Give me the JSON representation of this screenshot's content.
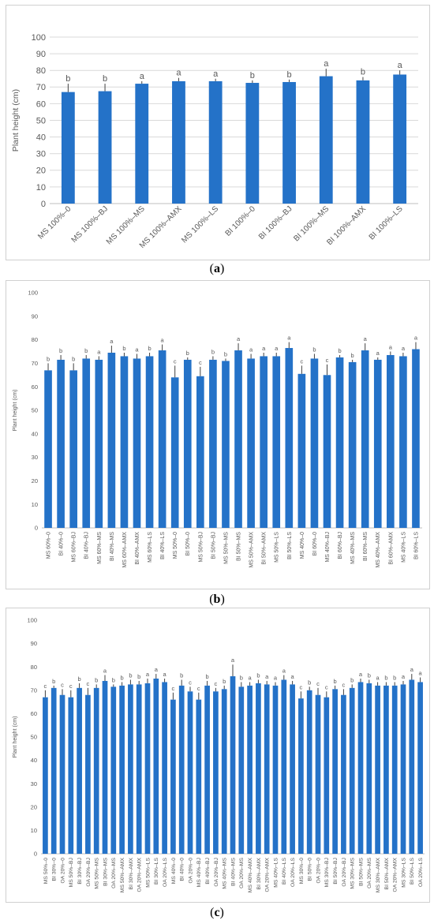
{
  "colors": {
    "bar": "#2472C8",
    "grid": "#D9D9D9",
    "axis": "#BFBFBF",
    "text": "#595959",
    "error": "#404040"
  },
  "captions": [
    {
      "open": "(",
      "letter": "a",
      "close": ")"
    },
    {
      "open": "(",
      "letter": "b",
      "close": ")"
    },
    {
      "open": "(",
      "letter": "c",
      "close": ")"
    }
  ],
  "chart_data": [
    {
      "type": "bar",
      "ylabel": "Plant height (cm)",
      "ylim": [
        0,
        100
      ],
      "yticks": [
        0,
        10,
        20,
        30,
        40,
        50,
        60,
        70,
        80,
        90,
        100
      ],
      "grid": true,
      "categories": [
        "MS 100%–0",
        "MS 100%–BJ",
        "MS 100%–MS",
        "MS 100%–AMX",
        "MS 100%–LS",
        "BI 100%–0",
        "BI 100%–BJ",
        "BI 100%–MS",
        "BI 100%–AMX",
        "BI 100%–LS"
      ],
      "values": [
        67,
        67.5,
        72,
        73.5,
        73.5,
        72.5,
        73,
        76.5,
        74,
        77.5
      ],
      "errors": [
        5,
        4.5,
        1.5,
        2,
        1.5,
        1.5,
        1.5,
        4.5,
        2,
        2.5
      ],
      "labels": [
        "b",
        "b",
        "a",
        "a",
        "a",
        "b",
        "b",
        "a",
        "b",
        "a"
      ]
    },
    {
      "type": "bar",
      "ylabel": "Plant height (cm)",
      "ylim": [
        0,
        100
      ],
      "yticks": [
        0,
        10,
        20,
        30,
        40,
        50,
        60,
        70,
        80,
        90,
        100
      ],
      "grid": false,
      "categories": [
        "MS 60%–0",
        "BI 40%–0",
        "MS 60%–BJ",
        "BI 40%–BJ",
        "MS 60%–MS",
        "BI 40%–MS",
        "MS 60%–AMX",
        "BI 40%–AMX",
        "MS 60%–LS",
        "BI 40%–LS",
        "MS 50%–0",
        "BI 50%–0",
        "MS 50%–BJ",
        "BI 50%–BJ",
        "MS 50%–MS",
        "BI 50%–MS",
        "MS 50%–AMX",
        "BI 50%–AMX",
        "MS 50%–LS",
        "BI 50%–LS",
        "MS 40%–0",
        "BI 60%–0",
        "MS 40%–BJ",
        "BI 60%–BJ",
        "MS 40%–MS",
        "BI 60%–MS",
        "MS 40%–AMX",
        "BI 60%–AMX",
        "MS 40%–LS",
        "BI 60%–LS"
      ],
      "values": [
        67,
        71.5,
        67,
        72,
        71.5,
        74.5,
        73,
        72,
        73,
        75.5,
        64,
        71.5,
        64.5,
        71.5,
        71,
        75.5,
        72,
        73,
        73,
        76.5,
        65.5,
        72,
        65,
        72.5,
        70.5,
        75.5,
        71.5,
        73.5,
        73,
        76
      ],
      "errors": [
        3,
        2,
        3,
        1.5,
        1.5,
        3,
        1.5,
        2,
        1.5,
        2.5,
        5,
        1,
        4,
        1.5,
        1,
        3,
        2,
        1.5,
        1.5,
        2.5,
        3.5,
        2,
        4.5,
        1,
        1,
        3,
        1,
        1.5,
        1.5,
        3
      ],
      "labels": [
        "b",
        "b",
        "b",
        "b",
        "a",
        "a",
        "b",
        "a",
        "b",
        "a",
        "c",
        "b",
        "c",
        "b",
        "b",
        "a",
        "a",
        "a",
        "a",
        "a",
        "c",
        "b",
        "c",
        "b",
        "b",
        "a",
        "a",
        "a",
        "a",
        "a"
      ]
    },
    {
      "type": "bar",
      "ylabel": "Plant height (cm)",
      "ylim": [
        0,
        100
      ],
      "yticks": [
        0,
        10,
        20,
        30,
        40,
        50,
        60,
        70,
        80,
        90,
        100
      ],
      "grid": false,
      "categories": [
        "MS 50%–0",
        "BI 30%–0",
        "OA 20%–0",
        "MS 50%–BJ",
        "BI 30%–BJ",
        "OA 20%–BJ",
        "MS 50%–MS",
        "BI 30%–MS",
        "OA 20%–MS",
        "MS 50%–AMX",
        "BI 30%–AMX",
        "OA 20%–AMX",
        "MS 50%–LS",
        "BI 30%–LS",
        "OA 20%–LS",
        "MS 40%–0",
        "BI 40%–0",
        "OA 20%–0",
        "MS 40%–BJ",
        "BI 40%–BJ",
        "OA 20%–BJ",
        "MS 40%–MS",
        "BI 40%–MS",
        "OA 20%–MS",
        "MS 40%–AMX",
        "BI 30%–AMX",
        "OA 20%–AMX",
        "MS 40%–LS",
        "BI 40%–LS",
        "OA 20%–LS",
        "MS 30%–0",
        "BI 50%–0",
        "OA 20%–0",
        "MS 30%–BJ",
        "BI 50%–BJ",
        "OA 20%–BJ",
        "MS 30%–MS",
        "BI 50%–MS",
        "OA 20%–MS",
        "MS 30%–AMX",
        "BI 50%–AMX",
        "OA 20%–AMX",
        "MS 30%–LS",
        "BI 50%–LS",
        "OA 20%–LS"
      ],
      "values": [
        67,
        71,
        68,
        67,
        71,
        68,
        71,
        74,
        71.5,
        72,
        72.5,
        72.5,
        73,
        75,
        73.5,
        66,
        72,
        69.5,
        66,
        72,
        69.5,
        70.5,
        76,
        71.5,
        72,
        73,
        72.5,
        72,
        74.5,
        72.5,
        66.5,
        70,
        68,
        67,
        70.5,
        68,
        71,
        73.5,
        73,
        72,
        72,
        72,
        72.5,
        74.5,
        73.5
      ],
      "errors": [
        3,
        1,
        2.5,
        3,
        2,
        3,
        1.5,
        2.5,
        1,
        1.5,
        2,
        1.5,
        2,
        2,
        1.5,
        3,
        2.5,
        2,
        3,
        2,
        1.5,
        1.5,
        5,
        2,
        1.5,
        1.5,
        1.5,
        1.5,
        2,
        1.5,
        3,
        1.5,
        3,
        2.5,
        1.5,
        2.5,
        1.5,
        1.5,
        1.5,
        1.5,
        1.5,
        1.5,
        1.5,
        2.5,
        2
      ],
      "labels": [
        "c",
        "b",
        "c",
        "c",
        "b",
        "c",
        "b",
        "a",
        "b",
        "b",
        "b",
        "b",
        "a",
        "a",
        "a",
        "c",
        "b",
        "c",
        "c",
        "b",
        "c",
        "b",
        "a",
        "b",
        "a",
        "b",
        "a",
        "a",
        "a",
        "a",
        "c",
        "b",
        "c",
        "c",
        "b",
        "c",
        "b",
        "a",
        "b",
        "a",
        "b",
        "b",
        "a",
        "a",
        "a"
      ]
    }
  ]
}
